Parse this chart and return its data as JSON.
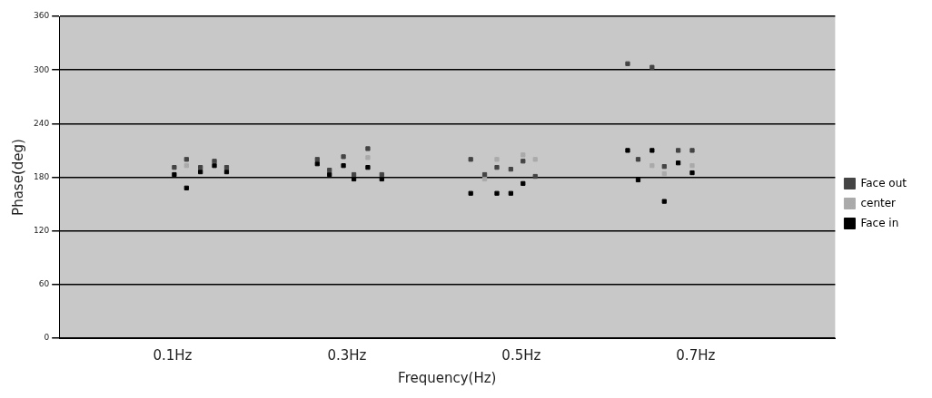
{
  "chart_data": {
    "type": "scatter",
    "xlabel": "Frequency(Hz)",
    "ylabel": "Phase(deg)",
    "xlim": [
      -0.03,
      0.86
    ],
    "xticks": [
      {
        "value": 0.1,
        "label": "0.1Hz"
      },
      {
        "value": 0.3,
        "label": "0.3Hz"
      },
      {
        "value": 0.5,
        "label": "0.5Hz"
      },
      {
        "value": 0.7,
        "label": "0.7Hz"
      }
    ],
    "ylim": [
      0,
      360
    ],
    "yticks": [
      0,
      60,
      120,
      180,
      240,
      300,
      360
    ],
    "grid": "y",
    "legend": "right",
    "marker": "square",
    "series": [
      {
        "name": "Face out",
        "color": "#444444",
        "x": [
          0.102,
          0.116,
          0.132,
          0.148,
          0.162,
          0.266,
          0.28,
          0.296,
          0.308,
          0.324,
          0.34,
          0.442,
          0.458,
          0.472,
          0.488,
          0.502,
          0.516,
          0.622,
          0.634,
          0.65,
          0.664,
          0.68,
          0.696
        ],
        "values": [
          191,
          200,
          191,
          198,
          191,
          200,
          188,
          203,
          183,
          212,
          183,
          200,
          183,
          191,
          189,
          198,
          181,
          307,
          200,
          303,
          192,
          210,
          210
        ]
      },
      {
        "name": "center",
        "color": "#aaaaaa",
        "x": [
          0.116,
          0.324,
          0.458,
          0.472,
          0.502,
          0.516,
          0.65,
          0.664,
          0.696
        ],
        "values": [
          193,
          202,
          178,
          200,
          205,
          200,
          193,
          184,
          193
        ]
      },
      {
        "name": "Face in",
        "color": "#000000",
        "x": [
          0.102,
          0.116,
          0.132,
          0.148,
          0.162,
          0.266,
          0.28,
          0.296,
          0.308,
          0.324,
          0.34,
          0.442,
          0.472,
          0.488,
          0.502,
          0.622,
          0.634,
          0.65,
          0.664,
          0.68,
          0.696
        ],
        "values": [
          183,
          168,
          186,
          193,
          186,
          195,
          183,
          193,
          178,
          191,
          178,
          162,
          162,
          162,
          173,
          210,
          177,
          210,
          153,
          196,
          185
        ]
      }
    ]
  }
}
